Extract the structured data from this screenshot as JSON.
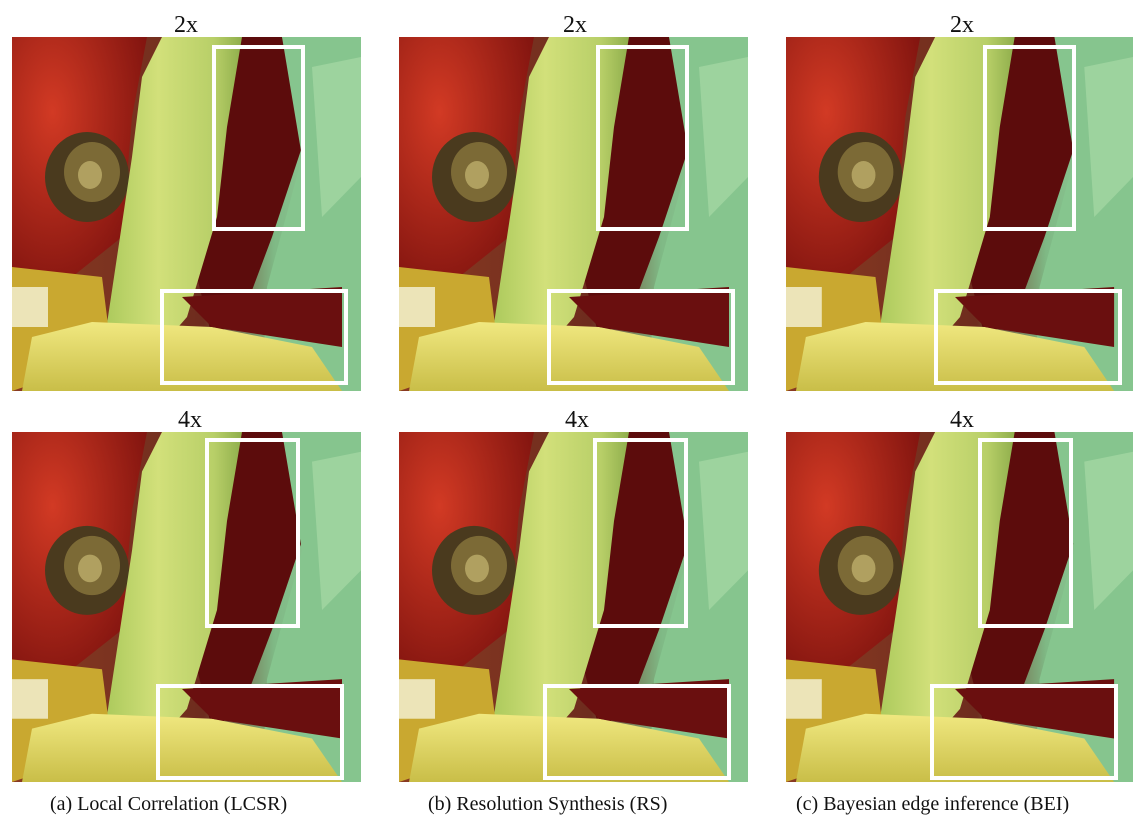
{
  "rows": [
    {
      "scale": "2x"
    },
    {
      "scale": "4x"
    }
  ],
  "captions": [
    "(a)  Local Correlation (LCSR)",
    "(b)  Resolution Synthesis (RS)",
    "(c)  Bayesian edge inference (BEI)"
  ],
  "colors": {
    "pepper_red": "#b01c14",
    "pepper_stem": "#c8d96a",
    "leaf_green": "#7cc48c",
    "shadow": "#5c0a0a",
    "yellow_pepper": "#e2d85a",
    "zoom_box": "#ffffff"
  }
}
